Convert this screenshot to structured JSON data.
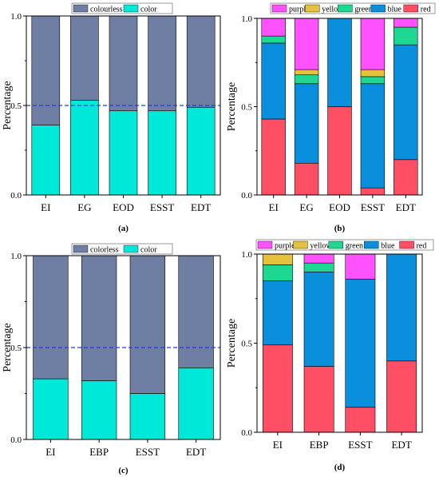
{
  "figure": {
    "background": "#ffffff",
    "colors": {
      "colourless": "#6f7fa3",
      "color": "#00e8d8",
      "purple": "#ff52ff",
      "yellow": "#e6c13c",
      "green": "#1ed891",
      "blue": "#0a8fdc",
      "red": "#ff4f64",
      "refline": "#1f3de0",
      "axis": "#000000"
    }
  },
  "chart_data": [
    {
      "id": "a",
      "type": "bar",
      "stacked": true,
      "caption": "(a)",
      "ylabel": "Percentage",
      "ylim": [
        0,
        1
      ],
      "yticks": [
        "0.0",
        "0.5",
        "1.0"
      ],
      "categories": [
        "EI",
        "EG",
        "EOD",
        "ESST",
        "EDT"
      ],
      "series": [
        {
          "name": "color",
          "color": "#00e8d8",
          "values": [
            0.39,
            0.53,
            0.47,
            0.47,
            0.49
          ]
        },
        {
          "name": "colourless",
          "color": "#6f7fa3",
          "values": [
            0.61,
            0.47,
            0.53,
            0.53,
            0.51
          ]
        }
      ],
      "legend": [
        "colourless",
        "color"
      ],
      "legend_position": "top",
      "reference_line": 0.5
    },
    {
      "id": "b",
      "type": "bar",
      "stacked": true,
      "caption": "(b)",
      "ylabel": "Percentage",
      "ylim": [
        0,
        1
      ],
      "yticks": [
        "0.0",
        "0.5",
        "1.0"
      ],
      "categories": [
        "EI",
        "EG",
        "EOD",
        "ESST",
        "EDT"
      ],
      "series": [
        {
          "name": "red",
          "color": "#ff4f64",
          "values": [
            0.43,
            0.18,
            0.5,
            0.04,
            0.2
          ]
        },
        {
          "name": "blue",
          "color": "#0a8fdc",
          "values": [
            0.43,
            0.45,
            0.5,
            0.59,
            0.65
          ]
        },
        {
          "name": "green",
          "color": "#1ed891",
          "values": [
            0.04,
            0.05,
            0.0,
            0.04,
            0.1
          ]
        },
        {
          "name": "yellow",
          "color": "#e6c13c",
          "values": [
            0.0,
            0.03,
            0.0,
            0.04,
            0.0
          ]
        },
        {
          "name": "purple",
          "color": "#ff52ff",
          "values": [
            0.1,
            0.29,
            0.0,
            0.29,
            0.05
          ]
        }
      ],
      "legend": [
        "purple",
        "yellow",
        "green",
        "blue",
        "red"
      ],
      "legend_position": "top"
    },
    {
      "id": "c",
      "type": "bar",
      "stacked": true,
      "caption": "(c)",
      "ylabel": "Percentage",
      "ylim": [
        0,
        1
      ],
      "yticks": [
        "0.0",
        "0.5",
        "1.0"
      ],
      "categories": [
        "EI",
        "EBP",
        "ESST",
        "EDT"
      ],
      "series": [
        {
          "name": "color",
          "color": "#00e8d8",
          "values": [
            0.33,
            0.32,
            0.25,
            0.39
          ]
        },
        {
          "name": "colorless",
          "color": "#6f7fa3",
          "values": [
            0.67,
            0.68,
            0.75,
            0.61
          ]
        }
      ],
      "legend": [
        "colorless",
        "color"
      ],
      "legend_position": "top",
      "reference_line": 0.5
    },
    {
      "id": "d",
      "type": "bar",
      "stacked": true,
      "caption": "(d)",
      "ylabel": "Percentage",
      "ylim": [
        0,
        1
      ],
      "yticks": [
        "0.0",
        "0.5",
        "1.0"
      ],
      "categories": [
        "EI",
        "EBP",
        "ESST",
        "EDT"
      ],
      "series": [
        {
          "name": "red",
          "color": "#ff4f64",
          "values": [
            0.49,
            0.37,
            0.14,
            0.4
          ]
        },
        {
          "name": "blue",
          "color": "#0a8fdc",
          "values": [
            0.36,
            0.53,
            0.72,
            0.6
          ]
        },
        {
          "name": "green",
          "color": "#1ed891",
          "values": [
            0.09,
            0.05,
            0.0,
            0.0
          ]
        },
        {
          "name": "yellow",
          "color": "#e6c13c",
          "values": [
            0.06,
            0.0,
            0.0,
            0.0
          ]
        },
        {
          "name": "purple",
          "color": "#ff52ff",
          "values": [
            0.0,
            0.05,
            0.14,
            0.0
          ]
        }
      ],
      "legend": [
        "purple",
        "yellow",
        "green",
        "blue",
        "red"
      ],
      "legend_position": "top"
    }
  ]
}
